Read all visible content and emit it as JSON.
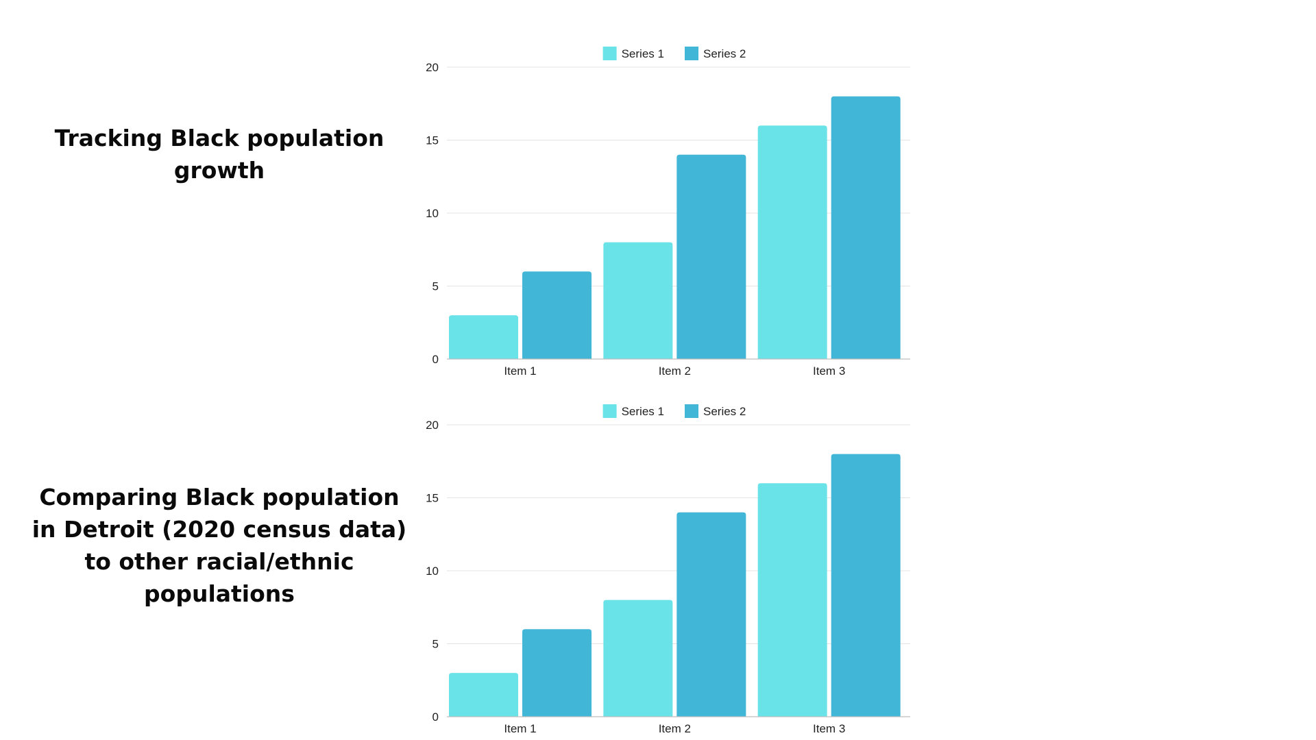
{
  "headings": [
    "Tracking Black population growth",
    "Comparing Black population in Detroit (2020 census data) to other racial/ethnic populations"
  ],
  "chart_data": [
    {
      "type": "bar",
      "categories": [
        "Item 1",
        "Item 2",
        "Item 3"
      ],
      "series": [
        {
          "name": "Series 1",
          "values": [
            3,
            8,
            16
          ],
          "color": "#6ae3e8"
        },
        {
          "name": "Series 2",
          "values": [
            6,
            14,
            18
          ],
          "color": "#41b6d6"
        }
      ],
      "yticks": [
        0,
        5,
        10,
        15,
        20
      ],
      "ylim": [
        0,
        20
      ],
      "grid": true,
      "legend": "top-center"
    },
    {
      "type": "bar",
      "categories": [
        "Item 1",
        "Item 2",
        "Item 3"
      ],
      "series": [
        {
          "name": "Series 1",
          "values": [
            3,
            8,
            16
          ],
          "color": "#6ae3e8"
        },
        {
          "name": "Series 2",
          "values": [
            6,
            14,
            18
          ],
          "color": "#41b6d6"
        }
      ],
      "yticks": [
        0,
        5,
        10,
        15,
        20
      ],
      "ylim": [
        0,
        20
      ],
      "grid": true,
      "legend": "top-center"
    }
  ]
}
